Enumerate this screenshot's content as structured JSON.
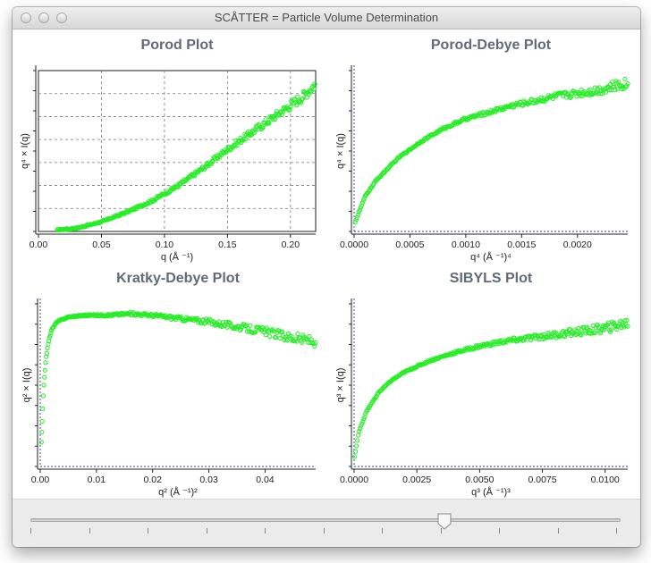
{
  "window": {
    "title": "SCÅTTER = Particle Volume Determination"
  },
  "slider": {
    "ticks": 11,
    "value_fraction": 0.7
  },
  "plots": [
    {
      "title": "Porod Plot",
      "xlabel": "q (Å ⁻¹)",
      "ylabel": "q⁴ × I(q)"
    },
    {
      "title": "Porod-Debye Plot",
      "xlabel": "q⁴ (Å ⁻¹)⁴",
      "ylabel": "q⁴ × I(q)"
    },
    {
      "title": "Kratky-Debye Plot",
      "xlabel": "q² (Å ⁻¹)²",
      "ylabel": "q² × I(q)"
    },
    {
      "title": "SIBYLS Plot",
      "xlabel": "q³ (Å ⁻¹)³",
      "ylabel": "q³ × I(q)"
    }
  ],
  "chart_data": [
    {
      "type": "scatter",
      "title": "Porod Plot",
      "xlabel": "q (Å ⁻¹)",
      "ylabel": "q⁴ × I(q)",
      "xlim": [
        0,
        0.22
      ],
      "ylim": [
        0,
        1
      ],
      "xticks": [
        "0.00",
        "0.05",
        "0.10",
        "0.15",
        "0.20"
      ],
      "grid": true,
      "color": "#22ee22",
      "x": [
        0.015,
        0.03,
        0.05,
        0.07,
        0.09,
        0.11,
        0.13,
        0.15,
        0.17,
        0.19,
        0.21,
        0.22
      ],
      "y": [
        0.01,
        0.02,
        0.06,
        0.12,
        0.19,
        0.28,
        0.39,
        0.51,
        0.62,
        0.73,
        0.84,
        0.92
      ]
    },
    {
      "type": "scatter",
      "title": "Porod-Debye Plot",
      "xlabel": "q⁴ (Å ⁻¹)⁴",
      "ylabel": "q⁴ × I(q)",
      "xlim": [
        0,
        0.00245
      ],
      "ylim": [
        0,
        1
      ],
      "xticks": [
        "0.0000",
        "0.0005",
        "0.0010",
        "0.0015",
        "0.0020"
      ],
      "grid": false,
      "color": "#22ee22",
      "x": [
        1e-05,
        0.0001,
        0.0002,
        0.0004,
        0.0006,
        0.0008,
        0.001,
        0.0012,
        0.0014,
        0.0016,
        0.0018,
        0.002,
        0.0022,
        0.00243
      ],
      "y": [
        0.06,
        0.22,
        0.32,
        0.46,
        0.56,
        0.64,
        0.7,
        0.74,
        0.78,
        0.81,
        0.84,
        0.86,
        0.88,
        0.92
      ]
    },
    {
      "type": "scatter",
      "title": "Kratky-Debye Plot",
      "xlabel": "q² (Å ⁻¹)²",
      "ylabel": "q² × I(q)",
      "xlim": [
        0,
        0.049
      ],
      "ylim": [
        0,
        1
      ],
      "xticks": [
        "0.00",
        "0.01",
        "0.02",
        "0.03",
        "0.04"
      ],
      "grid": false,
      "color": "#22ee22",
      "x": [
        0.0002,
        0.0006,
        0.001,
        0.0015,
        0.002,
        0.003,
        0.005,
        0.008,
        0.012,
        0.016,
        0.02,
        0.025,
        0.03,
        0.035,
        0.04,
        0.045,
        0.049
      ],
      "y": [
        0.15,
        0.48,
        0.66,
        0.77,
        0.84,
        0.89,
        0.92,
        0.93,
        0.93,
        0.94,
        0.93,
        0.91,
        0.89,
        0.86,
        0.83,
        0.79,
        0.77
      ]
    },
    {
      "type": "scatter",
      "title": "SIBYLS Plot",
      "xlabel": "q³ (Å ⁻¹)³",
      "ylabel": "q³ × I(q)",
      "xlim": [
        0,
        0.0109
      ],
      "ylim": [
        0,
        1
      ],
      "xticks": [
        "0.0000",
        "0.0025",
        "0.0050",
        "0.0075",
        "0.0100"
      ],
      "grid": false,
      "color": "#22ee22",
      "x": [
        2e-05,
        0.0002,
        0.0005,
        0.001,
        0.0015,
        0.002,
        0.003,
        0.004,
        0.005,
        0.006,
        0.007,
        0.008,
        0.009,
        0.01,
        0.0108
      ],
      "y": [
        0.06,
        0.22,
        0.34,
        0.46,
        0.53,
        0.58,
        0.65,
        0.7,
        0.74,
        0.77,
        0.79,
        0.81,
        0.83,
        0.85,
        0.88
      ]
    }
  ]
}
